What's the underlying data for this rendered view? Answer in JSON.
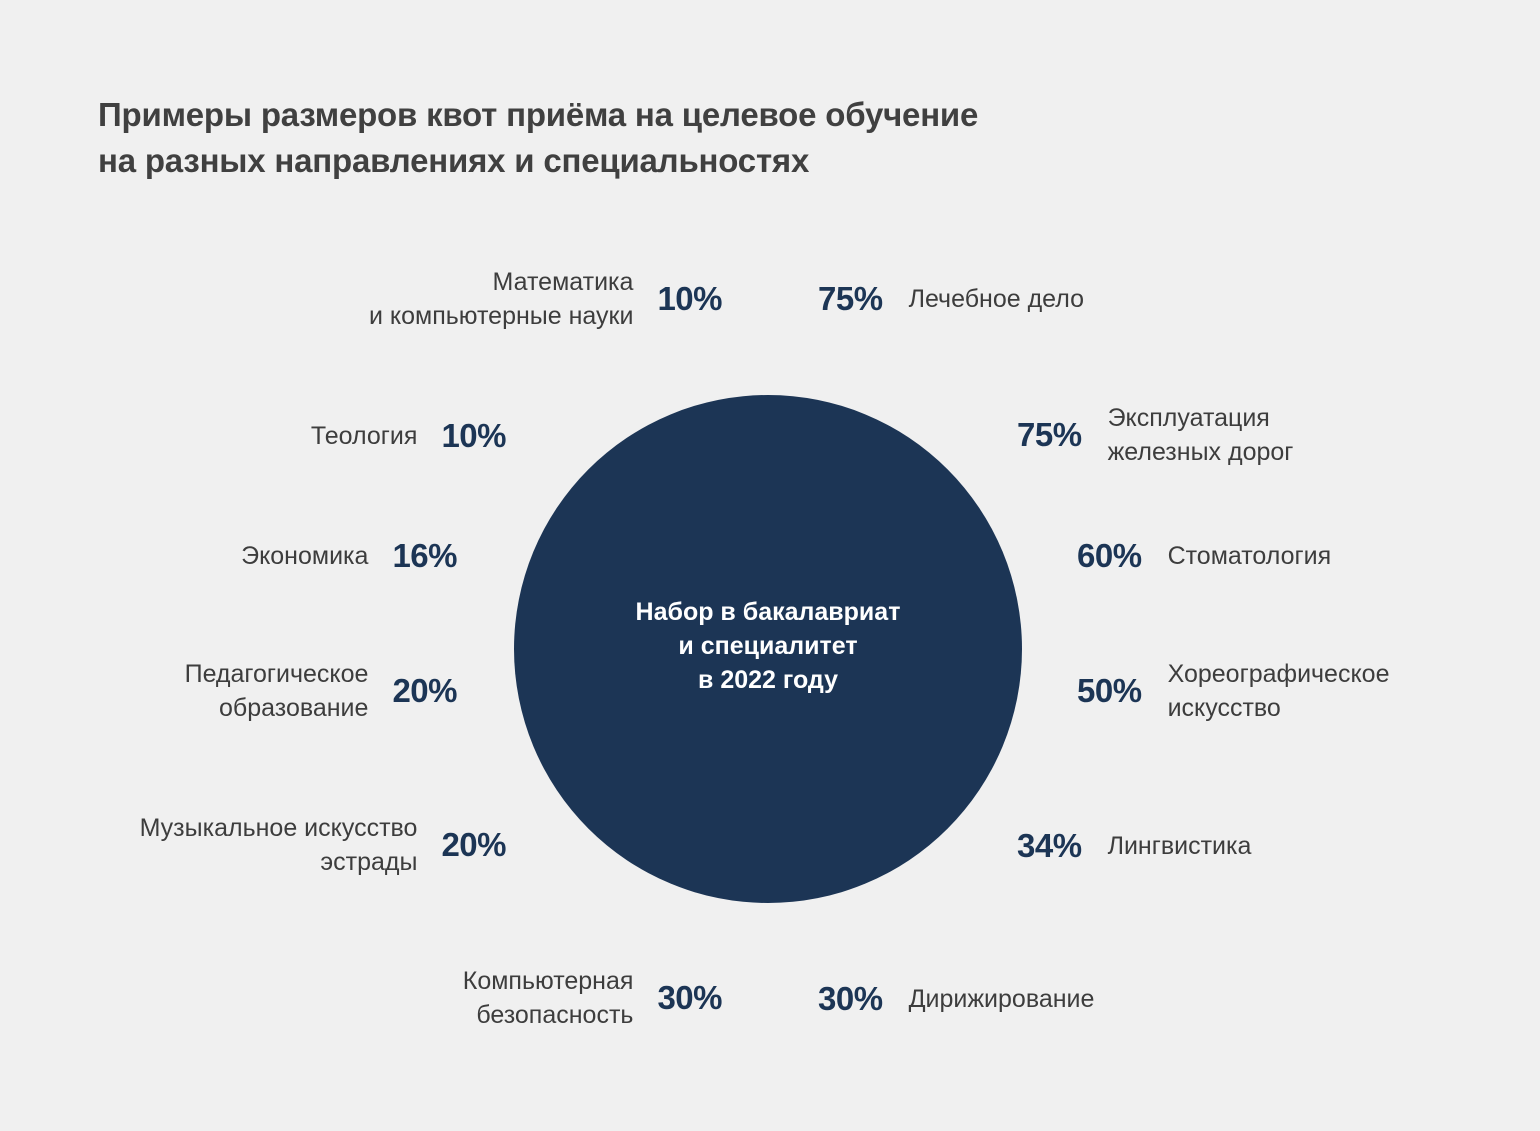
{
  "title": {
    "line1": "Примеры размеров квот приёма на целевое обучение",
    "line2": "на разных направлениях и специальностях"
  },
  "center": {
    "line1": "Набор в бакалавриат",
    "line2": "и специалитет",
    "line3": "в 2022 году"
  },
  "colors": {
    "background": "#f0f0f0",
    "circle": "#1c3555",
    "percent": "#1c3555",
    "text": "#3d3d3d"
  },
  "chart_data": {
    "type": "table",
    "title": "Примеры размеров квот приёма на целевое обучение на разных направлениях и специальностях",
    "unit": "%",
    "rows": [
      {
        "name": "Математика и компьютерные науки",
        "name_lines": [
          "Математика",
          "и компьютерные науки"
        ],
        "value": 10,
        "label": "10%"
      },
      {
        "name": "Лечебное дело",
        "name_lines": [
          "Лечебное дело"
        ],
        "value": 75,
        "label": "75%"
      },
      {
        "name": "Теология",
        "name_lines": [
          "Теология"
        ],
        "value": 10,
        "label": "10%"
      },
      {
        "name": "Эксплуатация железных дорог",
        "name_lines": [
          "Эксплуатация",
          "железных дорог"
        ],
        "value": 75,
        "label": "75%"
      },
      {
        "name": "Экономика",
        "name_lines": [
          "Экономика"
        ],
        "value": 16,
        "label": "16%"
      },
      {
        "name": "Стоматология",
        "name_lines": [
          "Стоматология"
        ],
        "value": 60,
        "label": "60%"
      },
      {
        "name": "Педагогическое образование",
        "name_lines": [
          "Педагогическое",
          "образование"
        ],
        "value": 20,
        "label": "20%"
      },
      {
        "name": "Хореографическое искусство",
        "name_lines": [
          "Хореографическое",
          "искусство"
        ],
        "value": 50,
        "label": "50%"
      },
      {
        "name": "Музыкальное искусство эстрады",
        "name_lines": [
          "Музыкальное искусство",
          "эстрады"
        ],
        "value": 20,
        "label": "20%"
      },
      {
        "name": "Лингвистика",
        "name_lines": [
          "Лингвистика"
        ],
        "value": 34,
        "label": "34%"
      },
      {
        "name": "Компьютерная безопасность",
        "name_lines": [
          "Компьютерная",
          "безопасность"
        ],
        "value": 30,
        "label": "30%"
      },
      {
        "name": "Дирижирование",
        "name_lines": [
          "Дирижирование"
        ],
        "value": 30,
        "label": "30%"
      }
    ]
  }
}
